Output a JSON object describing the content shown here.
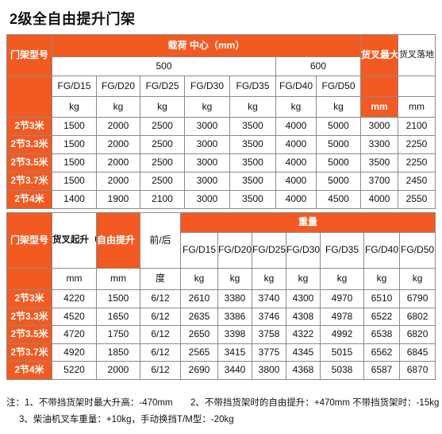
{
  "title": "2级全自由提升门架",
  "table1": {
    "header": {
      "row_label": "门架型号",
      "load_center": "载荷 中心（mm）",
      "center_500": "500",
      "center_600": "600",
      "max_height": "货叉最大升高",
      "fork_down": "货叉落地",
      "models": [
        "FG/D15",
        "FG/D20",
        "FG/D25",
        "FG/D30",
        "FG/D35",
        "FG/D40",
        "FG/D50"
      ],
      "units": [
        "kg",
        "kg",
        "kg",
        "kg",
        "kg",
        "kg",
        "kg",
        "mm",
        "mm"
      ]
    },
    "rows": [
      {
        "label": "2节3米",
        "values": [
          "1500",
          "2000",
          "2500",
          "3000",
          "3500",
          "4000",
          "5000",
          "3000",
          "2100"
        ]
      },
      {
        "label": "2节3.3米",
        "values": [
          "1500",
          "2000",
          "2500",
          "3000",
          "3500",
          "4000",
          "5000",
          "3300",
          "2250"
        ]
      },
      {
        "label": "2节3.5米",
        "values": [
          "1500",
          "2000",
          "2500",
          "3000",
          "3500",
          "4000",
          "5000",
          "3500",
          "2250"
        ]
      },
      {
        "label": "2节3.7米",
        "values": [
          "1500",
          "2000",
          "2500",
          "3000",
          "3500",
          "4000",
          "5000",
          "3700",
          "2450"
        ]
      },
      {
        "label": "2节4米",
        "values": [
          "1400",
          "1900",
          "2100",
          "3000",
          "3500",
          "4000",
          "4500",
          "4000",
          "2550"
        ]
      }
    ]
  },
  "table2": {
    "header": {
      "row_label": "门架型号",
      "fork_lift": "货叉起升（带挡货架）",
      "free_lift": "自由提升（带挡货架）",
      "tilt": "前/后",
      "weight": "重量",
      "models": [
        "FG/D15",
        "FG/D20",
        "FG/D25",
        "FG/D30",
        "FG/D35",
        "FG/D40",
        "FG/D50"
      ],
      "units": [
        "mm",
        "mm",
        "度",
        "kg",
        "kg",
        "kg",
        "kg",
        "kg",
        "kg",
        "kg"
      ]
    },
    "rows": [
      {
        "label": "2节3米",
        "values": [
          "4220",
          "1500",
          "6/12",
          "2610",
          "3380",
          "3740",
          "4300",
          "4970",
          "6510",
          "6790"
        ]
      },
      {
        "label": "2节3.3米",
        "values": [
          "4520",
          "1650",
          "6/12",
          "2635",
          "3386",
          "3746",
          "4308",
          "4978",
          "6522",
          "6802"
        ]
      },
      {
        "label": "2节3.5米",
        "values": [
          "4720",
          "1750",
          "6/12",
          "2650",
          "3398",
          "3758",
          "4322",
          "4992",
          "6538",
          "6820"
        ]
      },
      {
        "label": "2节3.7米",
        "values": [
          "4920",
          "1850",
          "6/12",
          "2565",
          "3415",
          "3775",
          "4345",
          "5015",
          "6562",
          "6845"
        ]
      },
      {
        "label": "2节4米",
        "values": [
          "5220",
          "2000",
          "6/12",
          "2690",
          "3440",
          "3800",
          "4368",
          "5038",
          "6587",
          "6870"
        ]
      }
    ]
  },
  "notes": {
    "prefix": "注：",
    "note1": "1、不带挡货架时最大升高：-470mm",
    "note2": "2、不带挡货架时的自由提升：+470mm 不带挡货架时：-15kg",
    "note3": "3、柴油机叉车重量：+10kg，手动换挡T/M型：-20kg"
  },
  "colors": {
    "header_orange": "#f25a22",
    "header_text": "#ffffff",
    "border": "#8a8a8a"
  }
}
